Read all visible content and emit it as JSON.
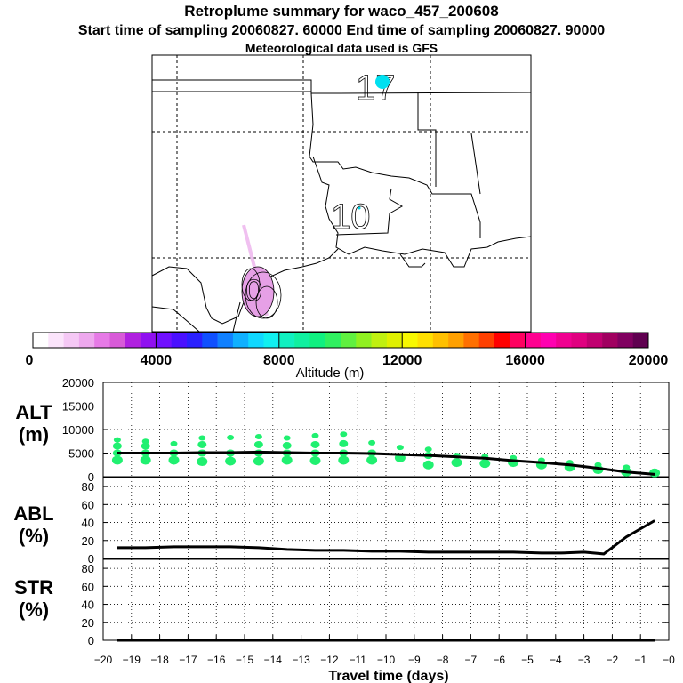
{
  "header": {
    "title": "Retroplume summary for waco_457_200608",
    "sampling": "Start time of sampling 20060827. 60000     End time of sampling 20060827. 90000",
    "met": "Meteorological data used is GFS"
  },
  "map": {
    "labels": [
      "17",
      "10",
      "0"
    ]
  },
  "colorbar": {
    "ticks": [
      "0",
      "4000",
      "8000",
      "12000",
      "16000",
      "20000"
    ],
    "label": "Altitude (m)",
    "colors": [
      "#ffffff",
      "#fbe4fb",
      "#f5c8f5",
      "#eea8ee",
      "#e67ae6",
      "#d85ad8",
      "#b020e0",
      "#9010f0",
      "#7010ff",
      "#4a10ff",
      "#2a20ff",
      "#1050ff",
      "#1080ff",
      "#10b0ff",
      "#10d8ff",
      "#10f0f0",
      "#10f0c0",
      "#10f0a0",
      "#10f080",
      "#30f060",
      "#60f040",
      "#90f020",
      "#c0f010",
      "#e0f000",
      "#f8f800",
      "#ffe000",
      "#ffc000",
      "#ffa000",
      "#ff7000",
      "#ff4000",
      "#ff0000",
      "#ff0060",
      "#ff0090",
      "#ff00b0",
      "#f00090",
      "#e00080",
      "#c00070",
      "#a00060",
      "#800060",
      "#600050"
    ]
  },
  "chart_data": [
    {
      "type": "line",
      "name": "ALT",
      "ylabel": "ALT (m)",
      "ylabel_lines": [
        "ALT",
        "(m)"
      ],
      "ylim": [
        0,
        20000
      ],
      "yticks": [
        "20000",
        "15000",
        "10000",
        "5000",
        "0"
      ],
      "x": [
        -19.5,
        -18.5,
        -17.5,
        -16.5,
        -15.5,
        -14.5,
        -13.5,
        -12.5,
        -11.5,
        -10.5,
        -9.5,
        -8.5,
        -7.5,
        -6.5,
        -5.5,
        -4.5,
        -3.5,
        -2.5,
        -1.5,
        -0.5
      ],
      "values": [
        5000,
        5000,
        5000,
        5100,
        5100,
        5200,
        5100,
        5000,
        5000,
        4900,
        4700,
        4500,
        4200,
        3900,
        3400,
        3000,
        2500,
        1800,
        1000,
        500
      ],
      "scatter": [
        {
          "x": -19.5,
          "y": [
            3500,
            5000,
            6500,
            7800
          ]
        },
        {
          "x": -18.5,
          "y": [
            3500,
            5000,
            6500,
            7500
          ]
        },
        {
          "x": -17.5,
          "y": [
            3500,
            5000,
            7000
          ]
        },
        {
          "x": -16.5,
          "y": [
            3200,
            5000,
            6800,
            8200
          ]
        },
        {
          "x": -15.5,
          "y": [
            3300,
            5000,
            8300
          ]
        },
        {
          "x": -14.5,
          "y": [
            3300,
            5000,
            6800,
            8500
          ]
        },
        {
          "x": -13.5,
          "y": [
            3500,
            5000,
            6600,
            8200
          ]
        },
        {
          "x": -12.5,
          "y": [
            3400,
            5000,
            6800,
            8700
          ]
        },
        {
          "x": -11.5,
          "y": [
            3500,
            5000,
            7000,
            9000
          ]
        },
        {
          "x": -10.5,
          "y": [
            3500,
            5000,
            7200
          ]
        },
        {
          "x": -9.5,
          "y": [
            4000,
            6200
          ]
        },
        {
          "x": -8.5,
          "y": [
            2500,
            4500,
            5800
          ]
        },
        {
          "x": -7.5,
          "y": [
            3000,
            4500
          ]
        },
        {
          "x": -6.5,
          "y": [
            2800,
            4300
          ]
        },
        {
          "x": -5.5,
          "y": [
            3000,
            4000
          ]
        },
        {
          "x": -4.5,
          "y": [
            2500,
            3500
          ]
        },
        {
          "x": -3.5,
          "y": [
            2000,
            3000
          ]
        },
        {
          "x": -2.5,
          "y": [
            1500,
            2500
          ]
        },
        {
          "x": -1.5,
          "y": [
            1000,
            2000
          ]
        },
        {
          "x": -0.5,
          "y": [
            800
          ]
        }
      ]
    },
    {
      "type": "line",
      "name": "ABL",
      "ylabel": "ABL (%)",
      "ylabel_lines": [
        "ABL",
        "(%)"
      ],
      "ylim": [
        0,
        90
      ],
      "yticks": [
        "80",
        "60",
        "40",
        "20",
        "0"
      ],
      "x": [
        -19.5,
        -18.5,
        -17.5,
        -16.5,
        -15.5,
        -14.5,
        -13.5,
        -12.5,
        -11.5,
        -10.5,
        -9.5,
        -8.5,
        -7.5,
        -6.5,
        -5.5,
        -4.5,
        -3.8,
        -3.0,
        -2.3,
        -1.5,
        -0.5
      ],
      "values": [
        12,
        12,
        13,
        13,
        13,
        12,
        10,
        9,
        9,
        8,
        8,
        7,
        7,
        7,
        7,
        6,
        6,
        7,
        5,
        24,
        42
      ]
    },
    {
      "type": "line",
      "name": "STR",
      "ylabel": "STR (%)",
      "ylabel_lines": [
        "STR",
        "(%)"
      ],
      "ylim": [
        0,
        90
      ],
      "yticks": [
        "80",
        "60",
        "40",
        "20",
        "0"
      ],
      "x": [
        -19.5,
        -0.5
      ],
      "values": [
        0,
        0
      ]
    }
  ],
  "xaxis": {
    "label": "Travel time (days)",
    "xlim": [
      -20,
      0
    ],
    "ticks": [
      "−20",
      "−19",
      "−18",
      "−17",
      "−16",
      "−15",
      "−14",
      "−13",
      "−12",
      "−11",
      "−10",
      "−9",
      "−8",
      "−7",
      "−6",
      "−5",
      "−4",
      "−3",
      "−2",
      "−1",
      "−0"
    ]
  }
}
